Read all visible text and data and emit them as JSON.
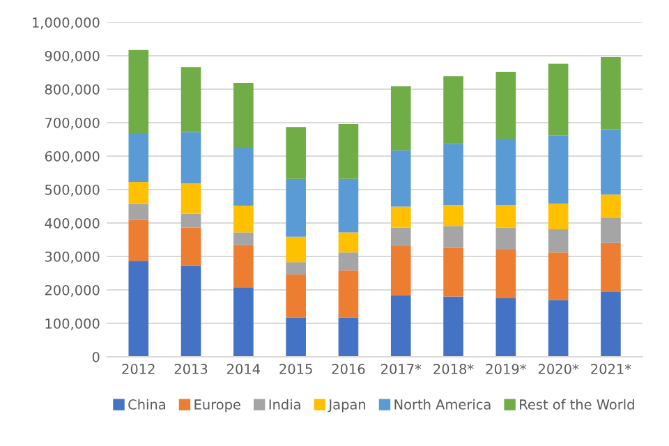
{
  "chart_data": {
    "type": "bar",
    "stacked": true,
    "categories": [
      "2012",
      "2013",
      "2014",
      "2015",
      "2016",
      "2017*",
      "2018*",
      "2019*",
      "2020*",
      "2021*"
    ],
    "series": [
      {
        "name": "China",
        "color": "#4472c4",
        "values": [
          287000,
          272000,
          208000,
          117000,
          117000,
          184000,
          180000,
          175000,
          170000,
          194000
        ]
      },
      {
        "name": "Europe",
        "color": "#ed7d31",
        "values": [
          122000,
          114000,
          126000,
          129000,
          141000,
          147000,
          146000,
          146000,
          142000,
          146000
        ]
      },
      {
        "name": "India",
        "color": "#a5a5a5",
        "values": [
          48000,
          42000,
          38000,
          37000,
          54000,
          55000,
          65000,
          65000,
          69000,
          76000
        ]
      },
      {
        "name": "Japan",
        "color": "#ffc000",
        "values": [
          66000,
          90000,
          80000,
          76000,
          60000,
          63000,
          63000,
          68000,
          77000,
          69000
        ]
      },
      {
        "name": "North America",
        "color": "#5b9bd5",
        "values": [
          146000,
          154000,
          175000,
          173000,
          160000,
          168000,
          182000,
          198000,
          203000,
          195000
        ]
      },
      {
        "name": "Rest of the World",
        "color": "#70ad47",
        "values": [
          248000,
          194000,
          192000,
          155000,
          164000,
          192000,
          203000,
          200000,
          215000,
          216000
        ]
      }
    ],
    "ylim": [
      0,
      1000000
    ],
    "yticks": [
      {
        "value": 0,
        "label": "0"
      },
      {
        "value": 100000,
        "label": "100,000"
      },
      {
        "value": 200000,
        "label": "200,000"
      },
      {
        "value": 300000,
        "label": "300,000"
      },
      {
        "value": 400000,
        "label": "400,000"
      },
      {
        "value": 500000,
        "label": "500,000"
      },
      {
        "value": 600000,
        "label": "600,000"
      },
      {
        "value": 700000,
        "label": "700,000"
      },
      {
        "value": 800000,
        "label": "800,000"
      },
      {
        "value": 900000,
        "label": "900,000"
      },
      {
        "value": 1000000,
        "label": "1,000,000"
      }
    ],
    "grid": "y",
    "legend": "bottom"
  }
}
